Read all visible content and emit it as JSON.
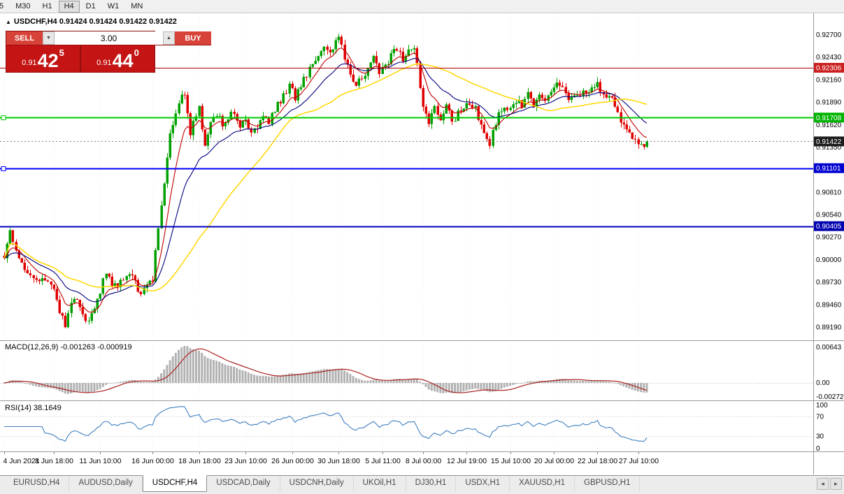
{
  "icons": {
    "collapse_panel": "▲",
    "spinner_up": "▲",
    "spinner_down": "▼",
    "tab_scroll_left": "◄",
    "tab_scroll_right": "►"
  },
  "toolbar": {
    "timeframes": [
      "5",
      "M30",
      "H1",
      "H4",
      "D1",
      "W1",
      "MN"
    ],
    "active_timeframe": "H4"
  },
  "symbol_info": {
    "text": "USDCHF,H4 0.91424 0.91424 0.91422 0.91422"
  },
  "trade_panel": {
    "sell_label": "SELL",
    "buy_label": "BUY",
    "volume": "3.00",
    "bid": {
      "prefix": "0.91",
      "big": "42",
      "sup": "5"
    },
    "ask": {
      "prefix": "0.91",
      "big": "44",
      "sup": "0"
    },
    "panel_color": "#c41414",
    "button_color": "#d84339"
  },
  "macd_panel": {
    "label": "MACD(12,26,9) -0.001263 -0.000919",
    "scale": [
      "0.00643",
      "0.00",
      "-0.00272"
    ]
  },
  "rsi_panel": {
    "label": "RSI(14) 38.1649",
    "scale": [
      "100",
      "70",
      "30",
      "0"
    ]
  },
  "tabs": {
    "items": [
      "EURUSD,H4",
      "AUDUSD,Daily",
      "USDCHF,H4",
      "USDCAD,Daily",
      "USDCNH,Daily",
      "UKOil,H1",
      "DJ30,H1",
      "USDX,H1",
      "XAUUSD,H1",
      "GBPUSD,H1"
    ],
    "active": "USDCHF,H4"
  },
  "chart_data": {
    "type": "candlestick",
    "symbol": "USDCHF",
    "timeframe": "H4",
    "num_bars": 222,
    "last_close": 0.91422,
    "colors": {
      "up": "#00a000",
      "down": "#e00000"
    },
    "price_axis": {
      "min": 0.89035,
      "max": 0.9296,
      "ticks": [
        "0.92700",
        "0.92430",
        "0.92160",
        "0.91890",
        "0.91620",
        "0.91350",
        "0.91080",
        "0.90810",
        "0.90540",
        "0.90270",
        "0.90000",
        "0.89730",
        "0.89460",
        "0.89190"
      ]
    },
    "hlines": [
      {
        "price": 0.92306,
        "label": "0.92306",
        "color": "#aa0000",
        "width": 1,
        "badge": "#cc2020",
        "handles": false
      },
      {
        "price": 0.91708,
        "label": "0.91708",
        "color": "#00cc00",
        "width": 2,
        "badge": "#00b400",
        "handles": true
      },
      {
        "price": 0.91101,
        "label": "0.91101",
        "color": "#0000ff",
        "width": 2,
        "badge": "#0000d0",
        "handles": true
      },
      {
        "price": 0.90405,
        "label": "0.90405",
        "color": "#0000bb",
        "width": 2,
        "badge": "#0000b0",
        "handles": false
      }
    ],
    "current_price": {
      "value": 0.91422,
      "label": "0.91422",
      "badge": "#1c1c1c"
    },
    "moving_averages": [
      {
        "type": "ema",
        "period": 8,
        "color": "#c00000",
        "width": 1.1
      },
      {
        "type": "ema",
        "period": 20,
        "color": "#000080",
        "width": 1.1
      },
      {
        "type": "sma",
        "period": 45,
        "color": "#ffd700",
        "width": 1.5
      }
    ],
    "indicators": {
      "macd": {
        "fast": 12,
        "slow": 26,
        "signal": 9,
        "current_values": [
          -0.001263,
          -0.000919
        ],
        "hist_color": "#b2b2b2",
        "line_color": "#aa2222"
      },
      "rsi": {
        "period": 14,
        "current_value": 38.1649,
        "color": "#3f7fbf",
        "levels": [
          70,
          30
        ]
      }
    },
    "x_labels": [
      {
        "bar": 0,
        "label": "4 Jun 2021"
      },
      {
        "bar": 17,
        "label": "8 Jun 18:00"
      },
      {
        "bar": 33,
        "label": "11 Jun 10:00"
      },
      {
        "bar": 51,
        "label": "16 Jun 00:00"
      },
      {
        "bar": 67,
        "label": "18 Jun 18:00"
      },
      {
        "bar": 83,
        "label": "23 Jun 10:00"
      },
      {
        "bar": 99,
        "label": "26 Jun 00:00"
      },
      {
        "bar": 115,
        "label": "30 Jun 18:00"
      },
      {
        "bar": 130,
        "label": "5 Jul 11:00"
      },
      {
        "bar": 144,
        "label": "8 Jul 00:00"
      },
      {
        "bar": 159,
        "label": "12 Jul 19:00"
      },
      {
        "bar": 174,
        "label": "15 Jul 10:00"
      },
      {
        "bar": 189,
        "label": "20 Jul 00:00"
      },
      {
        "bar": 204,
        "label": "22 Jul 18:00"
      },
      {
        "bar": 218,
        "label": "27 Jul 10:00"
      }
    ],
    "close_path_anchors": [
      [
        0,
        0.9005
      ],
      [
        2,
        0.9032
      ],
      [
        4,
        0.9012
      ],
      [
        6,
        0.8995
      ],
      [
        9,
        0.8982
      ],
      [
        12,
        0.8975
      ],
      [
        15,
        0.8978
      ],
      [
        17,
        0.8962
      ],
      [
        19,
        0.8938
      ],
      [
        21,
        0.8922
      ],
      [
        23,
        0.8946
      ],
      [
        25,
        0.8956
      ],
      [
        27,
        0.8934
      ],
      [
        29,
        0.8926
      ],
      [
        31,
        0.8942
      ],
      [
        33,
        0.8962
      ],
      [
        35,
        0.8986
      ],
      [
        37,
        0.8972
      ],
      [
        39,
        0.8968
      ],
      [
        41,
        0.898
      ],
      [
        43,
        0.8984
      ],
      [
        45,
        0.8972
      ],
      [
        47,
        0.896
      ],
      [
        49,
        0.8968
      ],
      [
        51,
        0.8976
      ],
      [
        52,
        0.9008
      ],
      [
        53,
        0.9042
      ],
      [
        54,
        0.9068
      ],
      [
        55,
        0.9094
      ],
      [
        56,
        0.9122
      ],
      [
        57,
        0.915
      ],
      [
        58,
        0.9163
      ],
      [
        59,
        0.9176
      ],
      [
        61,
        0.9194
      ],
      [
        62,
        0.9202
      ],
      [
        63,
        0.9174
      ],
      [
        64,
        0.915
      ],
      [
        65,
        0.9163
      ],
      [
        67,
        0.9186
      ],
      [
        68,
        0.916
      ],
      [
        69,
        0.9141
      ],
      [
        70,
        0.9153
      ],
      [
        71,
        0.9166
      ],
      [
        73,
        0.9176
      ],
      [
        75,
        0.9162
      ],
      [
        77,
        0.9173
      ],
      [
        79,
        0.9177
      ],
      [
        81,
        0.9158
      ],
      [
        83,
        0.9169
      ],
      [
        85,
        0.9149
      ],
      [
        87,
        0.9159
      ],
      [
        89,
        0.9173
      ],
      [
        91,
        0.9163
      ],
      [
        93,
        0.9181
      ],
      [
        95,
        0.9191
      ],
      [
        97,
        0.9203
      ],
      [
        98,
        0.9211
      ],
      [
        100,
        0.9193
      ],
      [
        102,
        0.9209
      ],
      [
        104,
        0.9223
      ],
      [
        106,
        0.9236
      ],
      [
        108,
        0.9249
      ],
      [
        110,
        0.9259
      ],
      [
        112,
        0.9247
      ],
      [
        114,
        0.9263
      ],
      [
        115,
        0.9269
      ],
      [
        117,
        0.9241
      ],
      [
        119,
        0.9225
      ],
      [
        121,
        0.9211
      ],
      [
        123,
        0.9219
      ],
      [
        125,
        0.9231
      ],
      [
        127,
        0.9241
      ],
      [
        129,
        0.9223
      ],
      [
        131,
        0.9233
      ],
      [
        133,
        0.9245
      ],
      [
        135,
        0.9253
      ],
      [
        137,
        0.9239
      ],
      [
        139,
        0.9251
      ],
      [
        141,
        0.9255
      ],
      [
        142,
        0.9236
      ],
      [
        143,
        0.921
      ],
      [
        144,
        0.9183
      ],
      [
        146,
        0.9167
      ],
      [
        148,
        0.9181
      ],
      [
        150,
        0.9171
      ],
      [
        152,
        0.9187
      ],
      [
        154,
        0.9167
      ],
      [
        156,
        0.9175
      ],
      [
        158,
        0.9179
      ],
      [
        160,
        0.9189
      ],
      [
        162,
        0.9183
      ],
      [
        164,
        0.9161
      ],
      [
        166,
        0.9146
      ],
      [
        167,
        0.9138
      ],
      [
        168,
        0.9159
      ],
      [
        170,
        0.9173
      ],
      [
        172,
        0.9179
      ],
      [
        174,
        0.9183
      ],
      [
        176,
        0.9191
      ],
      [
        178,
        0.9187
      ],
      [
        180,
        0.9197
      ],
      [
        182,
        0.9187
      ],
      [
        184,
        0.9201
      ],
      [
        186,
        0.9193
      ],
      [
        188,
        0.9199
      ],
      [
        190,
        0.9212
      ],
      [
        192,
        0.9206
      ],
      [
        194,
        0.9191
      ],
      [
        196,
        0.9199
      ],
      [
        198,
        0.9197
      ],
      [
        200,
        0.9201
      ],
      [
        202,
        0.9207
      ],
      [
        204,
        0.9209
      ],
      [
        206,
        0.9197
      ],
      [
        208,
        0.9201
      ],
      [
        210,
        0.9183
      ],
      [
        212,
        0.9166
      ],
      [
        214,
        0.9153
      ],
      [
        216,
        0.9149
      ],
      [
        218,
        0.9143
      ],
      [
        220,
        0.9139
      ],
      [
        221,
        0.91422
      ]
    ]
  }
}
